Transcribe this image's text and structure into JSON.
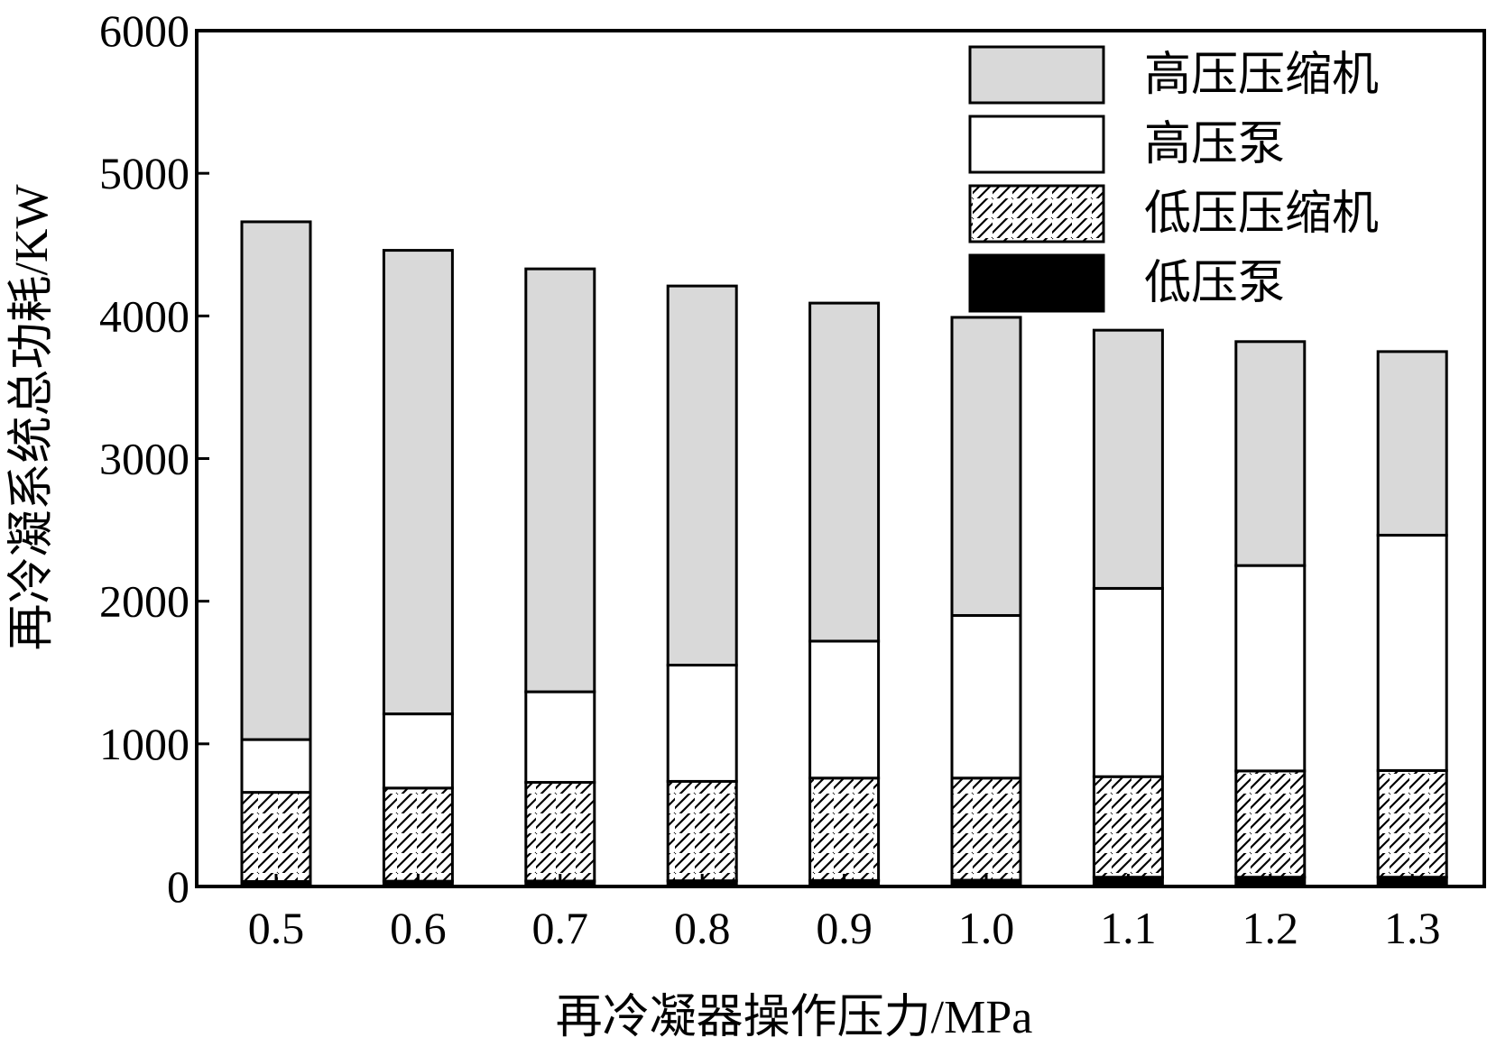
{
  "chart_data": {
    "type": "bar",
    "stacked": true,
    "xlabel": "再冷凝器操作压力/MPa",
    "ylabel": "再冷凝系统总功耗/KW",
    "ylim": [
      0,
      6000
    ],
    "yticks": [
      0,
      1000,
      2000,
      3000,
      4000,
      5000,
      6000
    ],
    "grid": false,
    "legend_position": "top-right",
    "categories": [
      "0.5",
      "0.6",
      "0.7",
      "0.8",
      "0.9",
      "1.0",
      "1.1",
      "1.2",
      "1.3"
    ],
    "series": [
      {
        "name": "低压泵",
        "pattern": "solid-black",
        "color": "#000000",
        "values": [
          35,
          37,
          38,
          40,
          42,
          44,
          65,
          65,
          65
        ]
      },
      {
        "name": "低压压缩机",
        "pattern": "hatch",
        "color": "#ffffff",
        "values": [
          625,
          653,
          692,
          697,
          718,
          716,
          705,
          745,
          748
        ]
      },
      {
        "name": "高压泵",
        "pattern": "white",
        "color": "#ffffff",
        "values": [
          370,
          520,
          635,
          815,
          960,
          1140,
          1320,
          1440,
          1650
        ]
      },
      {
        "name": "高压压缩机",
        "pattern": "gray",
        "color": "#d9d9d9",
        "values": [
          3630,
          3250,
          2965,
          2658,
          2370,
          2090,
          1810,
          1570,
          1287
        ]
      }
    ],
    "legend_order": [
      "高压压缩机",
      "高压泵",
      "低压压缩机",
      "低压泵"
    ]
  }
}
